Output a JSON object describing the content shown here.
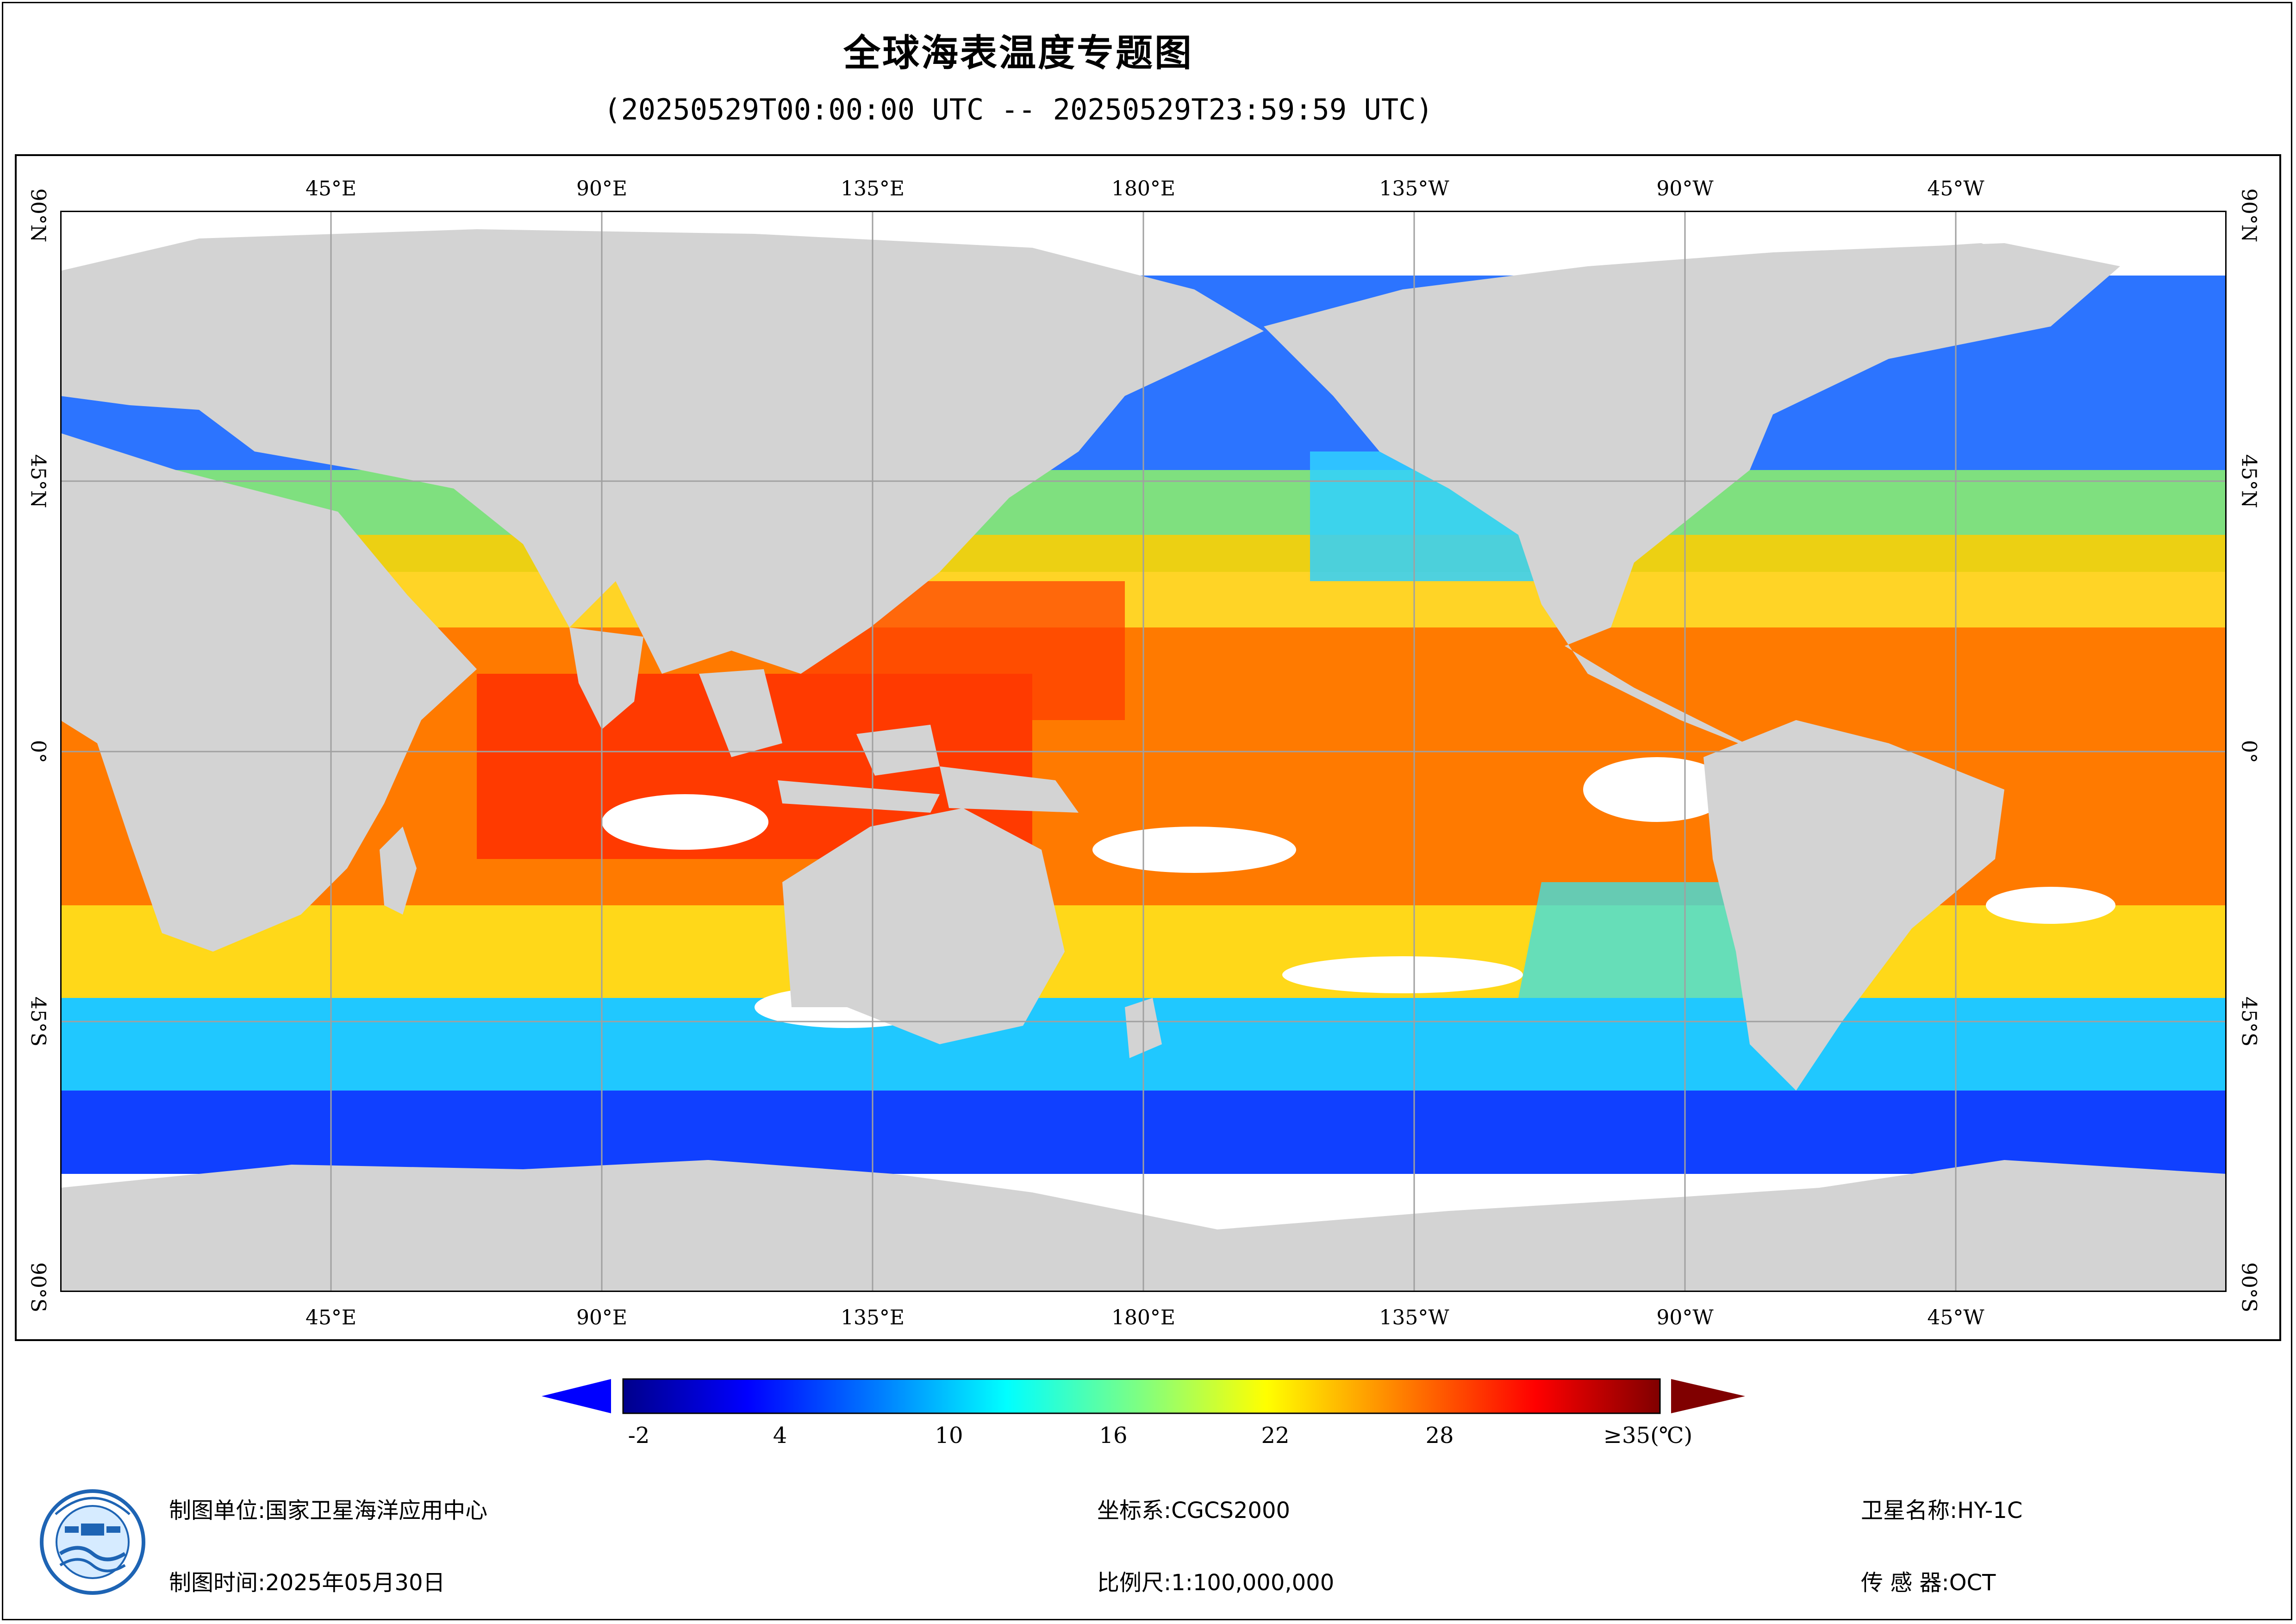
{
  "title": "全球海表温度专题图",
  "subtitle": "(20250529T00:00:00 UTC -- 20250529T23:59:59 UTC)",
  "map": {
    "lon_labels": [
      "45°E",
      "90°E",
      "135°E",
      "180°E",
      "135°W",
      "90°W",
      "45°W"
    ],
    "lat_labels_left": [
      "90°N",
      "45°N",
      "0°",
      "45°S",
      "90°S"
    ],
    "lat_labels_right": [
      "90°N",
      "45°N",
      "0°",
      "45°S",
      "90°S"
    ],
    "land_color": "#d3d3d3",
    "no_data_color": "#ffffff",
    "grid": true
  },
  "colorbar": {
    "ticks": [
      "-2",
      "4",
      "10",
      "16",
      "22",
      "28",
      "≥35(℃)"
    ],
    "colors": [
      "#00008b",
      "#0000ff",
      "#0080ff",
      "#00ffff",
      "#80ff80",
      "#ffff00",
      "#ff8000",
      "#ff0000",
      "#800000"
    ],
    "under_color": "#0000ff",
    "over_color": "#800000"
  },
  "footer": {
    "unit_label": "制图单位:国家卫星海洋应用中心",
    "time_label": "制图时间:2025年05月30日",
    "crs_label": "坐标系:CGCS2000",
    "scale_label": "比例尺:1:100,000,000",
    "satellite_label": "卫星名称:HY-1C",
    "sensor_label": "传 感 器:OCT"
  }
}
